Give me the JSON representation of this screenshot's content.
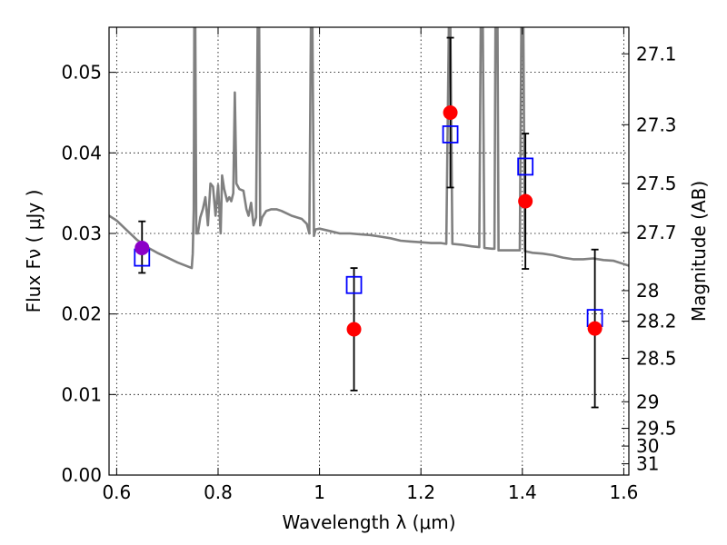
{
  "chart_data": {
    "type": "scatter",
    "xlabel": "Wavelength  λ (μm)",
    "ylabel": "Flux  Fν  ( μJy )",
    "ylabel_right": "Magnitude (AB)",
    "xlim": [
      0.585,
      1.61
    ],
    "ylim": [
      0.0,
      0.0556
    ],
    "grid": true,
    "x_ticks": [
      0.6,
      0.8,
      1.0,
      1.2,
      1.4,
      1.6
    ],
    "x_tick_labels": [
      "0.6",
      "0.8",
      "1",
      "1.2",
      "1.4",
      "1.6"
    ],
    "y_ticks": [
      0.0,
      0.01,
      0.02,
      0.03,
      0.04,
      0.05
    ],
    "y_tick_labels": [
      "0.00",
      "0.01",
      "0.02",
      "0.03",
      "0.04",
      "0.05"
    ],
    "right_ticks": [
      {
        "label": "27.1",
        "flux": 0.0523
      },
      {
        "label": "27.3",
        "flux": 0.0435
      },
      {
        "label": "27.5",
        "flux": 0.0362
      },
      {
        "label": "27.7",
        "flux": 0.0301
      },
      {
        "label": "28",
        "flux": 0.0229
      },
      {
        "label": "28.2",
        "flux": 0.0191
      },
      {
        "label": "28.5",
        "flux": 0.0145
      },
      {
        "label": "29",
        "flux": 0.0091
      },
      {
        "label": "29.5",
        "flux": 0.0058
      },
      {
        "label": "30",
        "flux": 0.0036
      },
      {
        "label": "31",
        "flux": 0.0014
      }
    ],
    "model_sed": {
      "color": "#808080",
      "points": [
        [
          0.585,
          0.0322
        ],
        [
          0.6,
          0.0316
        ],
        [
          0.62,
          0.0304
        ],
        [
          0.64,
          0.0292
        ],
        [
          0.66,
          0.0283
        ],
        [
          0.68,
          0.0276
        ],
        [
          0.7,
          0.027
        ],
        [
          0.72,
          0.0264
        ],
        [
          0.74,
          0.0259
        ],
        [
          0.748,
          0.0257
        ],
        [
          0.75,
          0.0275
        ],
        [
          0.752,
          0.033
        ],
        [
          0.753,
          0.0555
        ],
        [
          0.755,
          0.0555
        ],
        [
          0.757,
          0.03
        ],
        [
          0.76,
          0.03
        ],
        [
          0.765,
          0.032
        ],
        [
          0.77,
          0.033
        ],
        [
          0.775,
          0.0345
        ],
        [
          0.78,
          0.031
        ],
        [
          0.785,
          0.0362
        ],
        [
          0.79,
          0.0358
        ],
        [
          0.795,
          0.0322
        ],
        [
          0.8,
          0.036
        ],
        [
          0.805,
          0.03
        ],
        [
          0.808,
          0.0372
        ],
        [
          0.812,
          0.0355
        ],
        [
          0.818,
          0.034
        ],
        [
          0.822,
          0.0345
        ],
        [
          0.826,
          0.034
        ],
        [
          0.83,
          0.035
        ],
        [
          0.833,
          0.0475
        ],
        [
          0.836,
          0.0362
        ],
        [
          0.842,
          0.0355
        ],
        [
          0.85,
          0.0353
        ],
        [
          0.856,
          0.033
        ],
        [
          0.86,
          0.0322
        ],
        [
          0.865,
          0.0338
        ],
        [
          0.87,
          0.031
        ],
        [
          0.875,
          0.032
        ],
        [
          0.878,
          0.0555
        ],
        [
          0.881,
          0.0555
        ],
        [
          0.883,
          0.031
        ],
        [
          0.887,
          0.032
        ],
        [
          0.895,
          0.0328
        ],
        [
          0.905,
          0.033
        ],
        [
          0.915,
          0.033
        ],
        [
          0.925,
          0.0328
        ],
        [
          0.935,
          0.0325
        ],
        [
          0.945,
          0.0322
        ],
        [
          0.955,
          0.032
        ],
        [
          0.965,
          0.0318
        ],
        [
          0.975,
          0.0312
        ],
        [
          0.98,
          0.03
        ],
        [
          0.983,
          0.0555
        ],
        [
          0.986,
          0.0555
        ],
        [
          0.989,
          0.0297
        ],
        [
          0.992,
          0.0305
        ],
        [
          1.0,
          0.0306
        ],
        [
          1.02,
          0.0303
        ],
        [
          1.04,
          0.03
        ],
        [
          1.06,
          0.03
        ],
        [
          1.08,
          0.0299
        ],
        [
          1.1,
          0.0298
        ],
        [
          1.12,
          0.0296
        ],
        [
          1.14,
          0.0294
        ],
        [
          1.16,
          0.0291
        ],
        [
          1.18,
          0.029
        ],
        [
          1.2,
          0.0289
        ],
        [
          1.22,
          0.0288
        ],
        [
          1.24,
          0.0288
        ],
        [
          1.25,
          0.0287
        ],
        [
          1.255,
          0.0555
        ],
        [
          1.258,
          0.0555
        ],
        [
          1.262,
          0.0287
        ],
        [
          1.28,
          0.0286
        ],
        [
          1.3,
          0.0284
        ],
        [
          1.315,
          0.0283
        ],
        [
          1.318,
          0.0555
        ],
        [
          1.322,
          0.0555
        ],
        [
          1.325,
          0.0282
        ],
        [
          1.34,
          0.0281
        ],
        [
          1.345,
          0.0281
        ],
        [
          1.347,
          0.0555
        ],
        [
          1.351,
          0.0555
        ],
        [
          1.353,
          0.0279
        ],
        [
          1.38,
          0.0279
        ],
        [
          1.395,
          0.0279
        ],
        [
          1.398,
          0.0555
        ],
        [
          1.402,
          0.0555
        ],
        [
          1.405,
          0.0278
        ],
        [
          1.42,
          0.0276
        ],
        [
          1.44,
          0.0275
        ],
        [
          1.46,
          0.0273
        ],
        [
          1.48,
          0.027
        ],
        [
          1.5,
          0.0268
        ],
        [
          1.52,
          0.0268
        ],
        [
          1.54,
          0.0269
        ],
        [
          1.56,
          0.0267
        ],
        [
          1.58,
          0.0266
        ],
        [
          1.6,
          0.0262
        ],
        [
          1.61,
          0.026
        ]
      ]
    },
    "observed": {
      "color": "#ff0000",
      "points": [
        {
          "x": 0.65,
          "y": 0.0283
        },
        {
          "x": 1.068,
          "y": 0.0181,
          "err": 0.0076
        },
        {
          "x": 1.258,
          "y": 0.045,
          "err": 0.0093
        },
        {
          "x": 1.406,
          "y": 0.034,
          "err": 0.0084
        },
        {
          "x": 1.543,
          "y": 0.0182,
          "err": 0.0098
        }
      ]
    },
    "observed_special": {
      "color": "#8b00c8",
      "x": 0.65,
      "y": 0.0282,
      "err_low": 0.0031,
      "err_high": 0.0033
    },
    "model_photometry": {
      "color": "#0000ff",
      "points": [
        {
          "x": 0.65,
          "y": 0.027
        },
        {
          "x": 1.068,
          "y": 0.0236
        },
        {
          "x": 1.258,
          "y": 0.0423
        },
        {
          "x": 1.406,
          "y": 0.0383
        },
        {
          "x": 1.543,
          "y": 0.0195
        }
      ]
    }
  }
}
